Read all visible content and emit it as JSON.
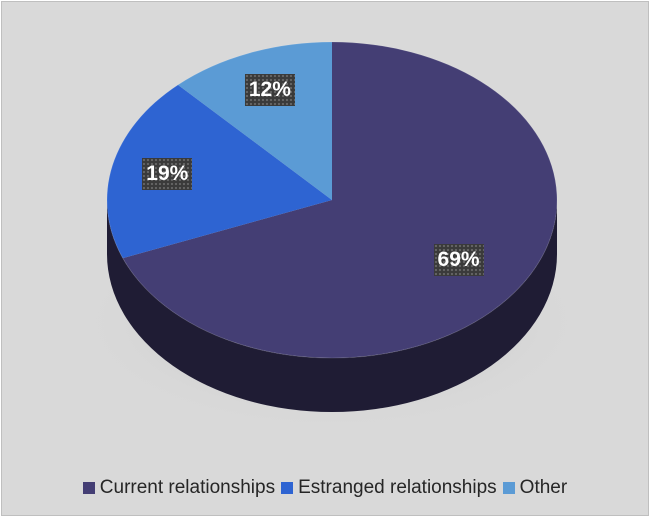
{
  "chart_data": {
    "type": "pie",
    "three_d": true,
    "categories": [
      "Current relationships",
      "Estranged relationships",
      "Other"
    ],
    "values": [
      69,
      19,
      12
    ],
    "labels": [
      "69%",
      "19%",
      "12%"
    ],
    "colors": [
      "#443e74",
      "#2e64d2",
      "#5b9bd5"
    ],
    "start": "12 o'clock, clockwise",
    "legend": "bottom",
    "title": ""
  }
}
